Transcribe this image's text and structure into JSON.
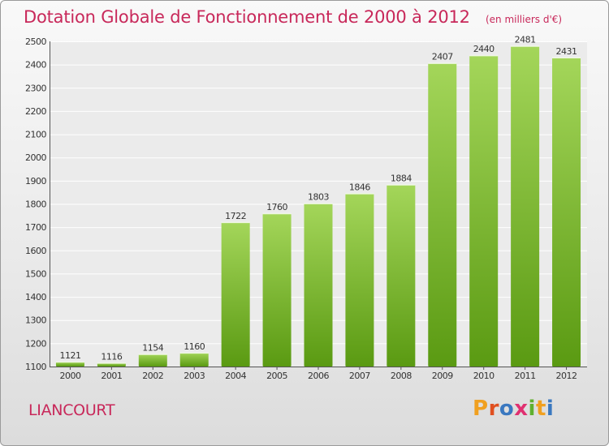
{
  "header": {
    "title": "Dotation Globale de Fonctionnement de 2000 à 2012",
    "subtitle": "(en milliers d'€)"
  },
  "footer": {
    "commune": "LIANCOURT",
    "logo_text": "Proxiti"
  },
  "colors": {
    "title": "#c8285a",
    "bar_top": "#a4d65a",
    "bar_bottom": "#5a9a12",
    "logo": [
      "#f0a020",
      "#e05020",
      "#3a78c0",
      "#e03070",
      "#60b030",
      "#f0a020",
      "#3a78c0"
    ]
  },
  "chart_data": {
    "type": "bar",
    "title": "Dotation Globale de Fonctionnement de 2000 à 2012",
    "subtitle": "(en milliers d'€)",
    "categories": [
      "2000",
      "2001",
      "2002",
      "2003",
      "2004",
      "2005",
      "2006",
      "2007",
      "2008",
      "2009",
      "2010",
      "2011",
      "2012"
    ],
    "values": [
      1121,
      1116,
      1154,
      1160,
      1722,
      1760,
      1803,
      1846,
      1884,
      2407,
      2440,
      2481,
      2431
    ],
    "ylim": [
      1100,
      2500
    ],
    "yticks": [
      1100,
      1200,
      1300,
      1400,
      1500,
      1600,
      1700,
      1800,
      1900,
      2000,
      2100,
      2200,
      2300,
      2400,
      2500
    ],
    "grid": true,
    "xlabel": "",
    "ylabel": ""
  }
}
